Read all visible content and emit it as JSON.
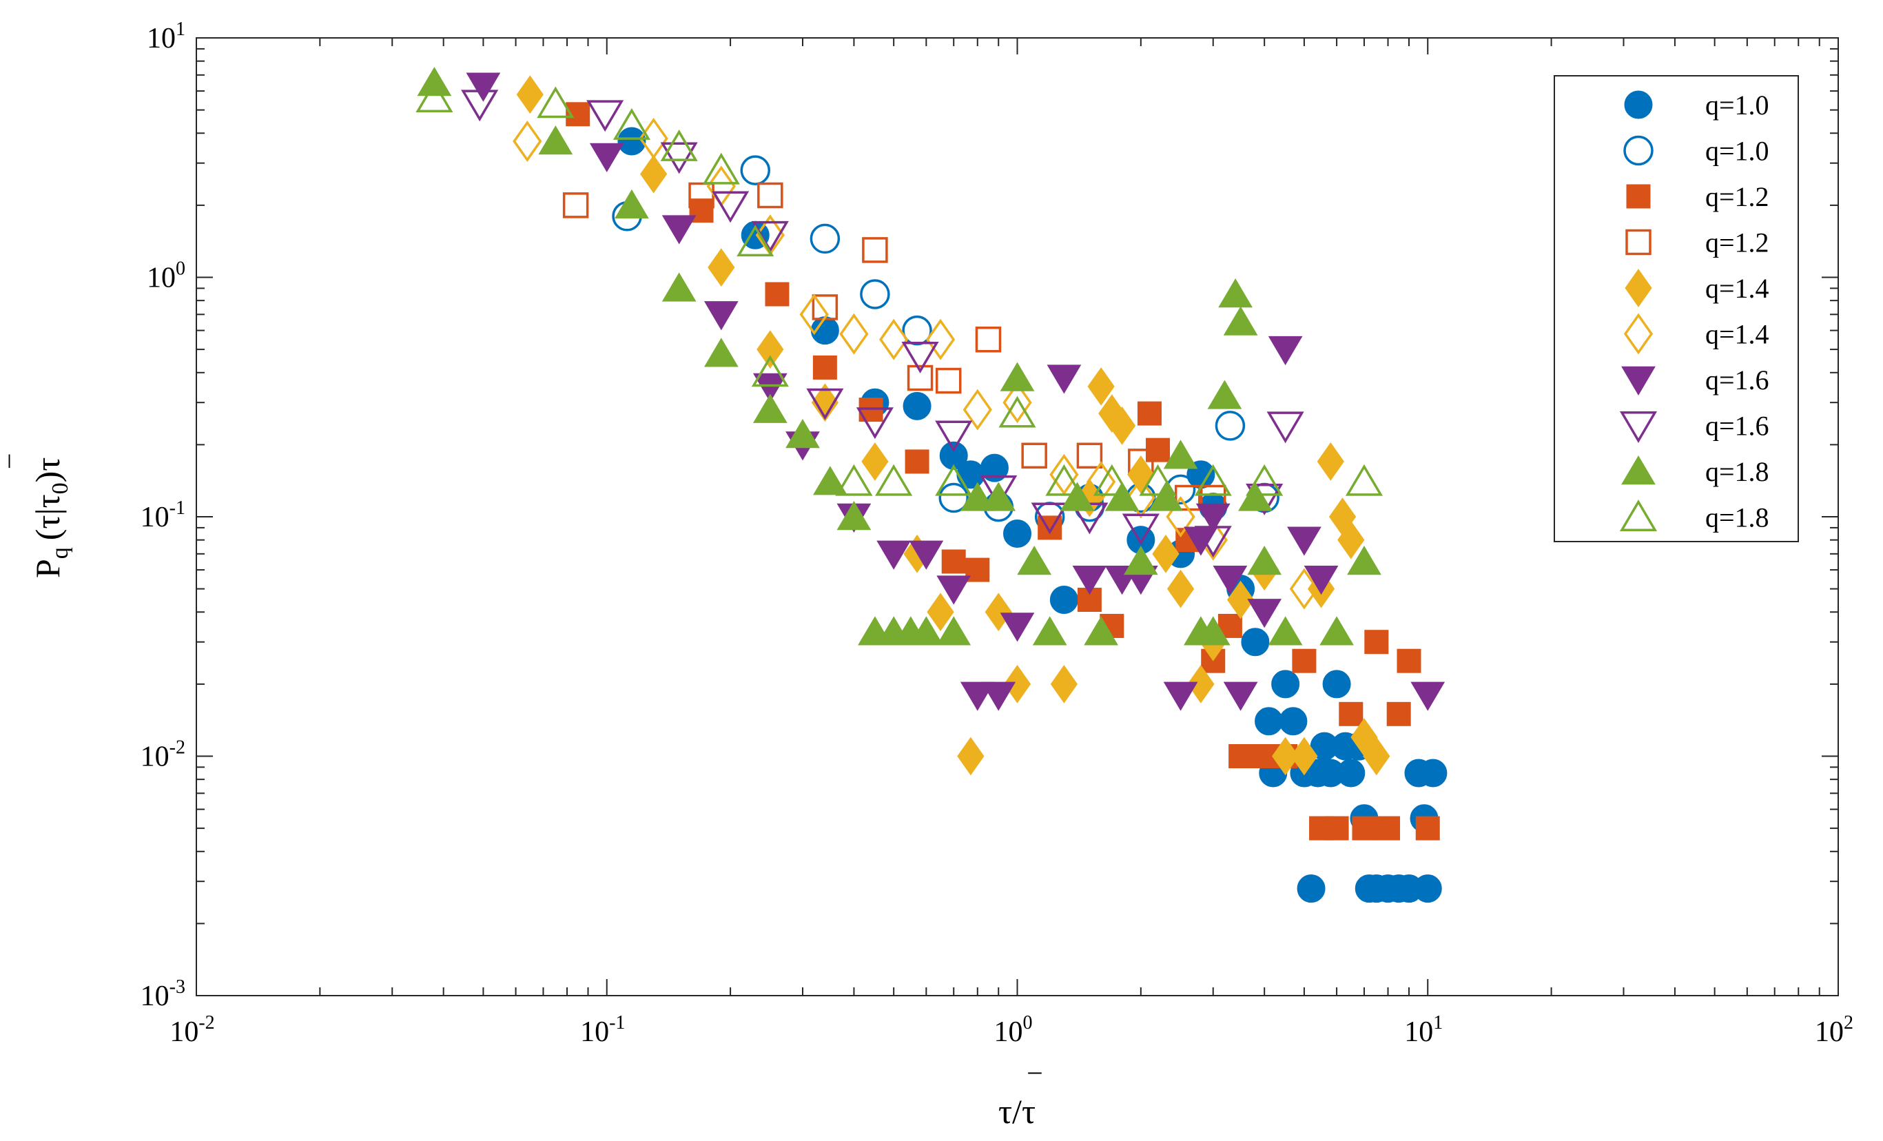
{
  "chart_data": {
    "type": "scatter",
    "title": "",
    "x_scale": "log",
    "y_scale": "log",
    "xlim": [
      0.01,
      100
    ],
    "ylim": [
      0.001,
      10
    ],
    "grid": false,
    "legend_position": "top-right",
    "x_ticks": [
      {
        "base": "10",
        "exp": "-2"
      },
      {
        "base": "10",
        "exp": "-1"
      },
      {
        "base": "10",
        "exp": "0"
      },
      {
        "base": "10",
        "exp": "1"
      },
      {
        "base": "10",
        "exp": "2"
      }
    ],
    "y_ticks": [
      {
        "base": "10",
        "exp": "-3"
      },
      {
        "base": "10",
        "exp": "-2"
      },
      {
        "base": "10",
        "exp": "-1"
      },
      {
        "base": "10",
        "exp": "0"
      },
      {
        "base": "10",
        "exp": "1"
      }
    ],
    "xlabel": {
      "main": "τ/τ",
      "accent": "‾"
    },
    "ylabel": {
      "p": "P",
      "sub_q": "q",
      "mid": "(τ|τ",
      "sub_0": "0",
      "end": ")τ",
      "accent": "‾"
    },
    "series": [
      {
        "name": "q=1.0",
        "marker": "circle",
        "filled": true,
        "color": "#0072BD",
        "points": [
          [
            0.115,
            3.7
          ],
          [
            0.23,
            1.5
          ],
          [
            0.34,
            0.6
          ],
          [
            0.45,
            0.3
          ],
          [
            0.57,
            0.29
          ],
          [
            0.7,
            0.18
          ],
          [
            0.77,
            0.15
          ],
          [
            0.88,
            0.16
          ],
          [
            1.0,
            0.085
          ],
          [
            1.3,
            0.045
          ],
          [
            1.5,
            0.12
          ],
          [
            2.0,
            0.08
          ],
          [
            2.5,
            0.07
          ],
          [
            2.8,
            0.15
          ],
          [
            3.0,
            0.11
          ],
          [
            3.5,
            0.05
          ],
          [
            3.8,
            0.03
          ],
          [
            4.1,
            0.014
          ],
          [
            4.2,
            0.0085
          ],
          [
            4.5,
            0.02
          ],
          [
            4.7,
            0.014
          ],
          [
            5.0,
            0.0085
          ],
          [
            5.2,
            0.0028
          ],
          [
            5.4,
            0.0085
          ],
          [
            5.6,
            0.011
          ],
          [
            5.8,
            0.0085
          ],
          [
            6.0,
            0.02
          ],
          [
            6.3,
            0.011
          ],
          [
            6.5,
            0.0085
          ],
          [
            6.8,
            0.011
          ],
          [
            7.0,
            0.0055
          ],
          [
            7.2,
            0.0028
          ],
          [
            7.5,
            0.0028
          ],
          [
            8.0,
            0.0028
          ],
          [
            8.5,
            0.0028
          ],
          [
            9.0,
            0.0028
          ],
          [
            9.5,
            0.0085
          ],
          [
            9.8,
            0.0055
          ],
          [
            10.0,
            0.0028
          ],
          [
            10.3,
            0.0085
          ]
        ]
      },
      {
        "name": "q=1.0",
        "marker": "circle",
        "filled": false,
        "color": "#0072BD",
        "points": [
          [
            0.112,
            1.8
          ],
          [
            0.23,
            2.8
          ],
          [
            0.34,
            1.45
          ],
          [
            0.45,
            0.85
          ],
          [
            0.57,
            0.6
          ],
          [
            0.7,
            0.12
          ],
          [
            0.9,
            0.11
          ],
          [
            1.2,
            0.1
          ],
          [
            1.5,
            0.11
          ],
          [
            2.0,
            0.12
          ],
          [
            2.5,
            0.13
          ],
          [
            3.3,
            0.24
          ],
          [
            4.0,
            0.12
          ]
        ]
      },
      {
        "name": "q=1.2",
        "marker": "square",
        "filled": true,
        "color": "#D95319",
        "points": [
          [
            0.085,
            4.8
          ],
          [
            0.17,
            1.9
          ],
          [
            0.26,
            0.85
          ],
          [
            0.34,
            0.42
          ],
          [
            0.44,
            0.28
          ],
          [
            0.57,
            0.17
          ],
          [
            0.7,
            0.065
          ],
          [
            0.8,
            0.06
          ],
          [
            1.2,
            0.09
          ],
          [
            1.5,
            0.045
          ],
          [
            1.7,
            0.035
          ],
          [
            2.1,
            0.27
          ],
          [
            2.2,
            0.19
          ],
          [
            2.6,
            0.08
          ],
          [
            3.0,
            0.025
          ],
          [
            3.3,
            0.035
          ],
          [
            3.5,
            0.01
          ],
          [
            4.0,
            0.01
          ],
          [
            4.5,
            0.01
          ],
          [
            5.0,
            0.025
          ],
          [
            5.5,
            0.005
          ],
          [
            6.0,
            0.005
          ],
          [
            6.5,
            0.015
          ],
          [
            7.0,
            0.005
          ],
          [
            7.5,
            0.03
          ],
          [
            8.0,
            0.005
          ],
          [
            8.5,
            0.015
          ],
          [
            9.0,
            0.025
          ],
          [
            10.0,
            0.005
          ]
        ]
      },
      {
        "name": "q=1.2",
        "marker": "square",
        "filled": false,
        "color": "#D95319",
        "points": [
          [
            0.084,
            2.0
          ],
          [
            0.17,
            2.2
          ],
          [
            0.25,
            2.2
          ],
          [
            0.34,
            0.75
          ],
          [
            0.45,
            1.3
          ],
          [
            0.58,
            0.38
          ],
          [
            0.68,
            0.37
          ],
          [
            0.85,
            0.55
          ],
          [
            1.1,
            0.18
          ],
          [
            1.5,
            0.18
          ],
          [
            2.0,
            0.17
          ],
          [
            2.6,
            0.12
          ],
          [
            3.0,
            0.12
          ]
        ]
      },
      {
        "name": "q=1.4",
        "marker": "diamond",
        "filled": true,
        "color": "#EDB120",
        "points": [
          [
            0.065,
            5.8
          ],
          [
            0.13,
            2.7
          ],
          [
            0.19,
            1.1
          ],
          [
            0.25,
            0.5
          ],
          [
            0.34,
            0.3
          ],
          [
            0.45,
            0.17
          ],
          [
            0.57,
            0.07
          ],
          [
            0.65,
            0.04
          ],
          [
            0.77,
            0.01
          ],
          [
            0.9,
            0.04
          ],
          [
            1.0,
            0.02
          ],
          [
            1.3,
            0.02
          ],
          [
            1.5,
            0.12
          ],
          [
            1.6,
            0.35
          ],
          [
            1.7,
            0.27
          ],
          [
            1.8,
            0.24
          ],
          [
            2.0,
            0.15
          ],
          [
            2.3,
            0.07
          ],
          [
            2.5,
            0.05
          ],
          [
            2.8,
            0.02
          ],
          [
            3.0,
            0.03
          ],
          [
            3.5,
            0.045
          ],
          [
            4.0,
            0.06
          ],
          [
            4.5,
            0.01
          ],
          [
            5.0,
            0.01
          ],
          [
            5.5,
            0.05
          ],
          [
            5.8,
            0.17
          ],
          [
            6.2,
            0.1
          ],
          [
            6.5,
            0.08
          ],
          [
            7.0,
            0.012
          ],
          [
            7.5,
            0.01
          ]
        ]
      },
      {
        "name": "q=1.4",
        "marker": "diamond",
        "filled": false,
        "color": "#EDB120",
        "points": [
          [
            0.064,
            3.7
          ],
          [
            0.13,
            3.8
          ],
          [
            0.19,
            2.4
          ],
          [
            0.25,
            1.5
          ],
          [
            0.32,
            0.7
          ],
          [
            0.4,
            0.58
          ],
          [
            0.5,
            0.55
          ],
          [
            0.65,
            0.55
          ],
          [
            0.8,
            0.28
          ],
          [
            1.0,
            0.3
          ],
          [
            1.3,
            0.15
          ],
          [
            1.6,
            0.14
          ],
          [
            2.0,
            0.12
          ],
          [
            2.5,
            0.1
          ],
          [
            3.0,
            0.08
          ],
          [
            4.0,
            0.06
          ],
          [
            5.0,
            0.05
          ]
        ]
      },
      {
        "name": "q=1.6",
        "marker": "triangle-down",
        "filled": true,
        "color": "#7E2F8E",
        "points": [
          [
            0.05,
            6.3
          ],
          [
            0.1,
            3.2
          ],
          [
            0.15,
            1.6
          ],
          [
            0.19,
            0.7
          ],
          [
            0.25,
            0.35
          ],
          [
            0.3,
            0.2
          ],
          [
            0.4,
            0.1
          ],
          [
            0.5,
            0.07
          ],
          [
            0.6,
            0.07
          ],
          [
            0.7,
            0.05
          ],
          [
            0.8,
            0.018
          ],
          [
            0.9,
            0.018
          ],
          [
            1.0,
            0.035
          ],
          [
            1.3,
            0.38
          ],
          [
            1.5,
            0.055
          ],
          [
            1.8,
            0.055
          ],
          [
            2.0,
            0.055
          ],
          [
            2.5,
            0.018
          ],
          [
            2.8,
            0.08
          ],
          [
            3.0,
            0.1
          ],
          [
            3.3,
            0.055
          ],
          [
            3.5,
            0.018
          ],
          [
            4.0,
            0.04
          ],
          [
            4.5,
            0.5
          ],
          [
            5.0,
            0.08
          ],
          [
            5.5,
            0.055
          ],
          [
            10.0,
            0.018
          ]
        ]
      },
      {
        "name": "q=1.6",
        "marker": "triangle-down",
        "filled": false,
        "color": "#7E2F8E",
        "points": [
          [
            0.049,
            5.3
          ],
          [
            0.099,
            4.8
          ],
          [
            0.15,
            3.2
          ],
          [
            0.2,
            2.0
          ],
          [
            0.25,
            1.5
          ],
          [
            0.34,
            0.3
          ],
          [
            0.45,
            0.25
          ],
          [
            0.58,
            0.47
          ],
          [
            0.7,
            0.22
          ],
          [
            0.9,
            0.13
          ],
          [
            1.2,
            0.1
          ],
          [
            1.5,
            0.1
          ],
          [
            2.0,
            0.09
          ],
          [
            3.0,
            0.08
          ],
          [
            4.0,
            0.12
          ],
          [
            4.5,
            0.24
          ]
        ]
      },
      {
        "name": "q=1.8",
        "marker": "triangle-up",
        "filled": true,
        "color": "#77AC30",
        "points": [
          [
            0.038,
            6.5
          ],
          [
            0.075,
            3.7
          ],
          [
            0.115,
            2.0
          ],
          [
            0.15,
            0.9
          ],
          [
            0.19,
            0.48
          ],
          [
            0.25,
            0.28
          ],
          [
            0.3,
            0.22
          ],
          [
            0.35,
            0.14
          ],
          [
            0.4,
            0.1
          ],
          [
            0.45,
            0.033
          ],
          [
            0.5,
            0.033
          ],
          [
            0.55,
            0.033
          ],
          [
            0.6,
            0.033
          ],
          [
            0.7,
            0.033
          ],
          [
            0.8,
            0.12
          ],
          [
            0.9,
            0.12
          ],
          [
            1.0,
            0.38
          ],
          [
            1.1,
            0.065
          ],
          [
            1.2,
            0.033
          ],
          [
            1.4,
            0.12
          ],
          [
            1.6,
            0.033
          ],
          [
            1.8,
            0.12
          ],
          [
            2.0,
            0.065
          ],
          [
            2.3,
            0.12
          ],
          [
            2.5,
            0.18
          ],
          [
            2.8,
            0.033
          ],
          [
            3.0,
            0.033
          ],
          [
            3.2,
            0.32
          ],
          [
            3.4,
            0.85
          ],
          [
            3.5,
            0.65
          ],
          [
            3.8,
            0.12
          ],
          [
            4.0,
            0.065
          ],
          [
            4.5,
            0.033
          ],
          [
            6.0,
            0.033
          ],
          [
            7.0,
            0.065
          ]
        ]
      },
      {
        "name": "q=1.8",
        "marker": "triangle-up",
        "filled": false,
        "color": "#77AC30",
        "points": [
          [
            0.038,
            5.6
          ],
          [
            0.075,
            5.3
          ],
          [
            0.115,
            4.3
          ],
          [
            0.15,
            3.5
          ],
          [
            0.19,
            2.8
          ],
          [
            0.23,
            1.4
          ],
          [
            0.25,
            0.4
          ],
          [
            0.4,
            0.14
          ],
          [
            0.5,
            0.14
          ],
          [
            0.7,
            0.14
          ],
          [
            1.0,
            0.27
          ],
          [
            1.3,
            0.14
          ],
          [
            1.7,
            0.14
          ],
          [
            2.2,
            0.14
          ],
          [
            3.0,
            0.14
          ],
          [
            4.0,
            0.14
          ],
          [
            7.0,
            0.14
          ]
        ]
      }
    ]
  }
}
